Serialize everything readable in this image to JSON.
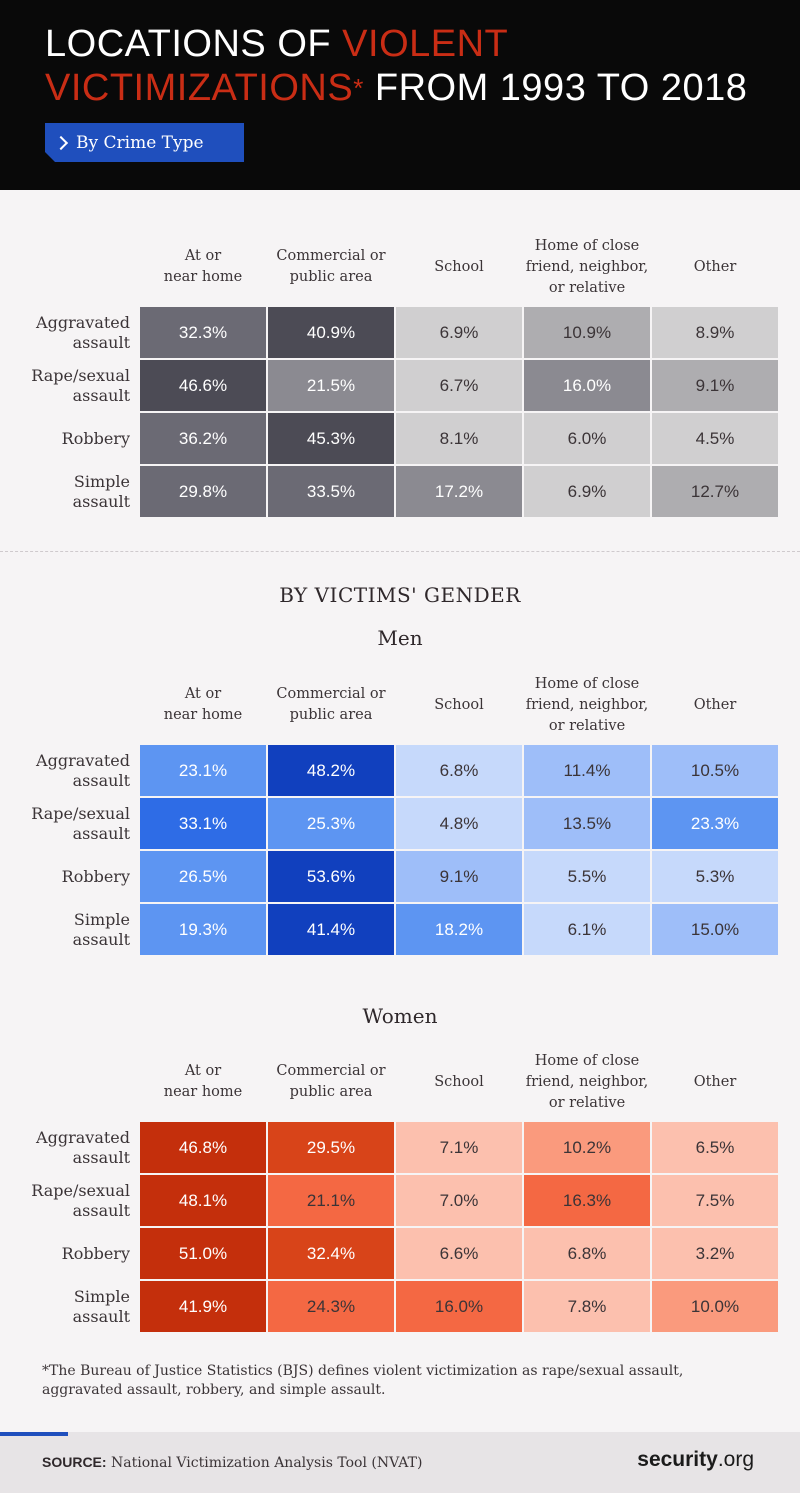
{
  "header": {
    "title_part1": "LOCATIONS OF ",
    "title_red1": "VIOLENT",
    "title_red2": "VICTIMIZATIONS",
    "title_asterisk": "*",
    "title_part2": " FROM 1993 TO 2018",
    "badge_label": "By Crime Type"
  },
  "gender_section_title": "BY VICTIMS' GENDER",
  "columns": [
    "At or\nnear home",
    "Commercial or\npublic area",
    "School",
    "Home of close\nfriend, neighbor,\nor relative",
    "Other"
  ],
  "rows": [
    "Aggravated\nassault",
    "Rape/sexual\nassault",
    "Robbery",
    "Simple\nassault"
  ],
  "chart_data": [
    {
      "type": "heatmap",
      "title": "By Crime Type",
      "unit": "%",
      "palette": "gray",
      "columns": [
        "At or near home",
        "Commercial or public area",
        "School",
        "Home of close friend, neighbor, or relative",
        "Other"
      ],
      "rows": [
        "Aggravated assault",
        "Rape/sexual assault",
        "Robbery",
        "Simple assault"
      ],
      "values": [
        [
          32.3,
          40.9,
          6.9,
          10.9,
          8.9
        ],
        [
          46.6,
          21.5,
          6.7,
          16.0,
          9.1
        ],
        [
          36.2,
          45.3,
          8.1,
          6.0,
          4.5
        ],
        [
          29.8,
          33.5,
          17.2,
          6.9,
          12.7
        ]
      ]
    },
    {
      "type": "heatmap",
      "title": "Men",
      "unit": "%",
      "palette": "blue",
      "columns": [
        "At or near home",
        "Commercial or public area",
        "School",
        "Home of close friend, neighbor, or relative",
        "Other"
      ],
      "rows": [
        "Aggravated assault",
        "Rape/sexual assault",
        "Robbery",
        "Simple assault"
      ],
      "values": [
        [
          23.1,
          48.2,
          6.8,
          11.4,
          10.5
        ],
        [
          33.1,
          25.3,
          4.8,
          13.5,
          23.3
        ],
        [
          26.5,
          53.6,
          9.1,
          5.5,
          5.3
        ],
        [
          19.3,
          41.4,
          18.2,
          6.1,
          15.0
        ]
      ]
    },
    {
      "type": "heatmap",
      "title": "Women",
      "unit": "%",
      "palette": "red",
      "columns": [
        "At or near home",
        "Commercial or public area",
        "School",
        "Home of close friend, neighbor, or relative",
        "Other"
      ],
      "rows": [
        "Aggravated assault",
        "Rape/sexual assault",
        "Robbery",
        "Simple assault"
      ],
      "values": [
        [
          46.8,
          29.5,
          7.1,
          10.2,
          6.5
        ],
        [
          48.1,
          21.1,
          7.0,
          16.3,
          7.5
        ],
        [
          51.0,
          32.4,
          6.6,
          6.8,
          3.2
        ],
        [
          41.9,
          24.3,
          16.0,
          7.8,
          10.0
        ]
      ]
    }
  ],
  "palettes": {
    "gray": [
      "#d0cfd0",
      "#aeadb0",
      "#8b8a91",
      "#6b6a74",
      "#4c4b55"
    ],
    "blue": [
      "#c6d9fb",
      "#9ebef9",
      "#5d95f2",
      "#2e6ce6",
      "#1140be"
    ],
    "red": [
      "#fcc0ae",
      "#fa9a7d",
      "#f46843",
      "#d84419",
      "#c42f0c"
    ]
  },
  "footnote": "*The Bureau of Justice Statistics (BJS) defines violent victimization as rape/sexual assault, aggravated assault, robbery, and simple assault.",
  "footer": {
    "source_label": "SOURCE:",
    "source_text": " National Victimization Analysis Tool (NVAT)",
    "brand_bold": "security",
    "brand_rest": ".org"
  }
}
